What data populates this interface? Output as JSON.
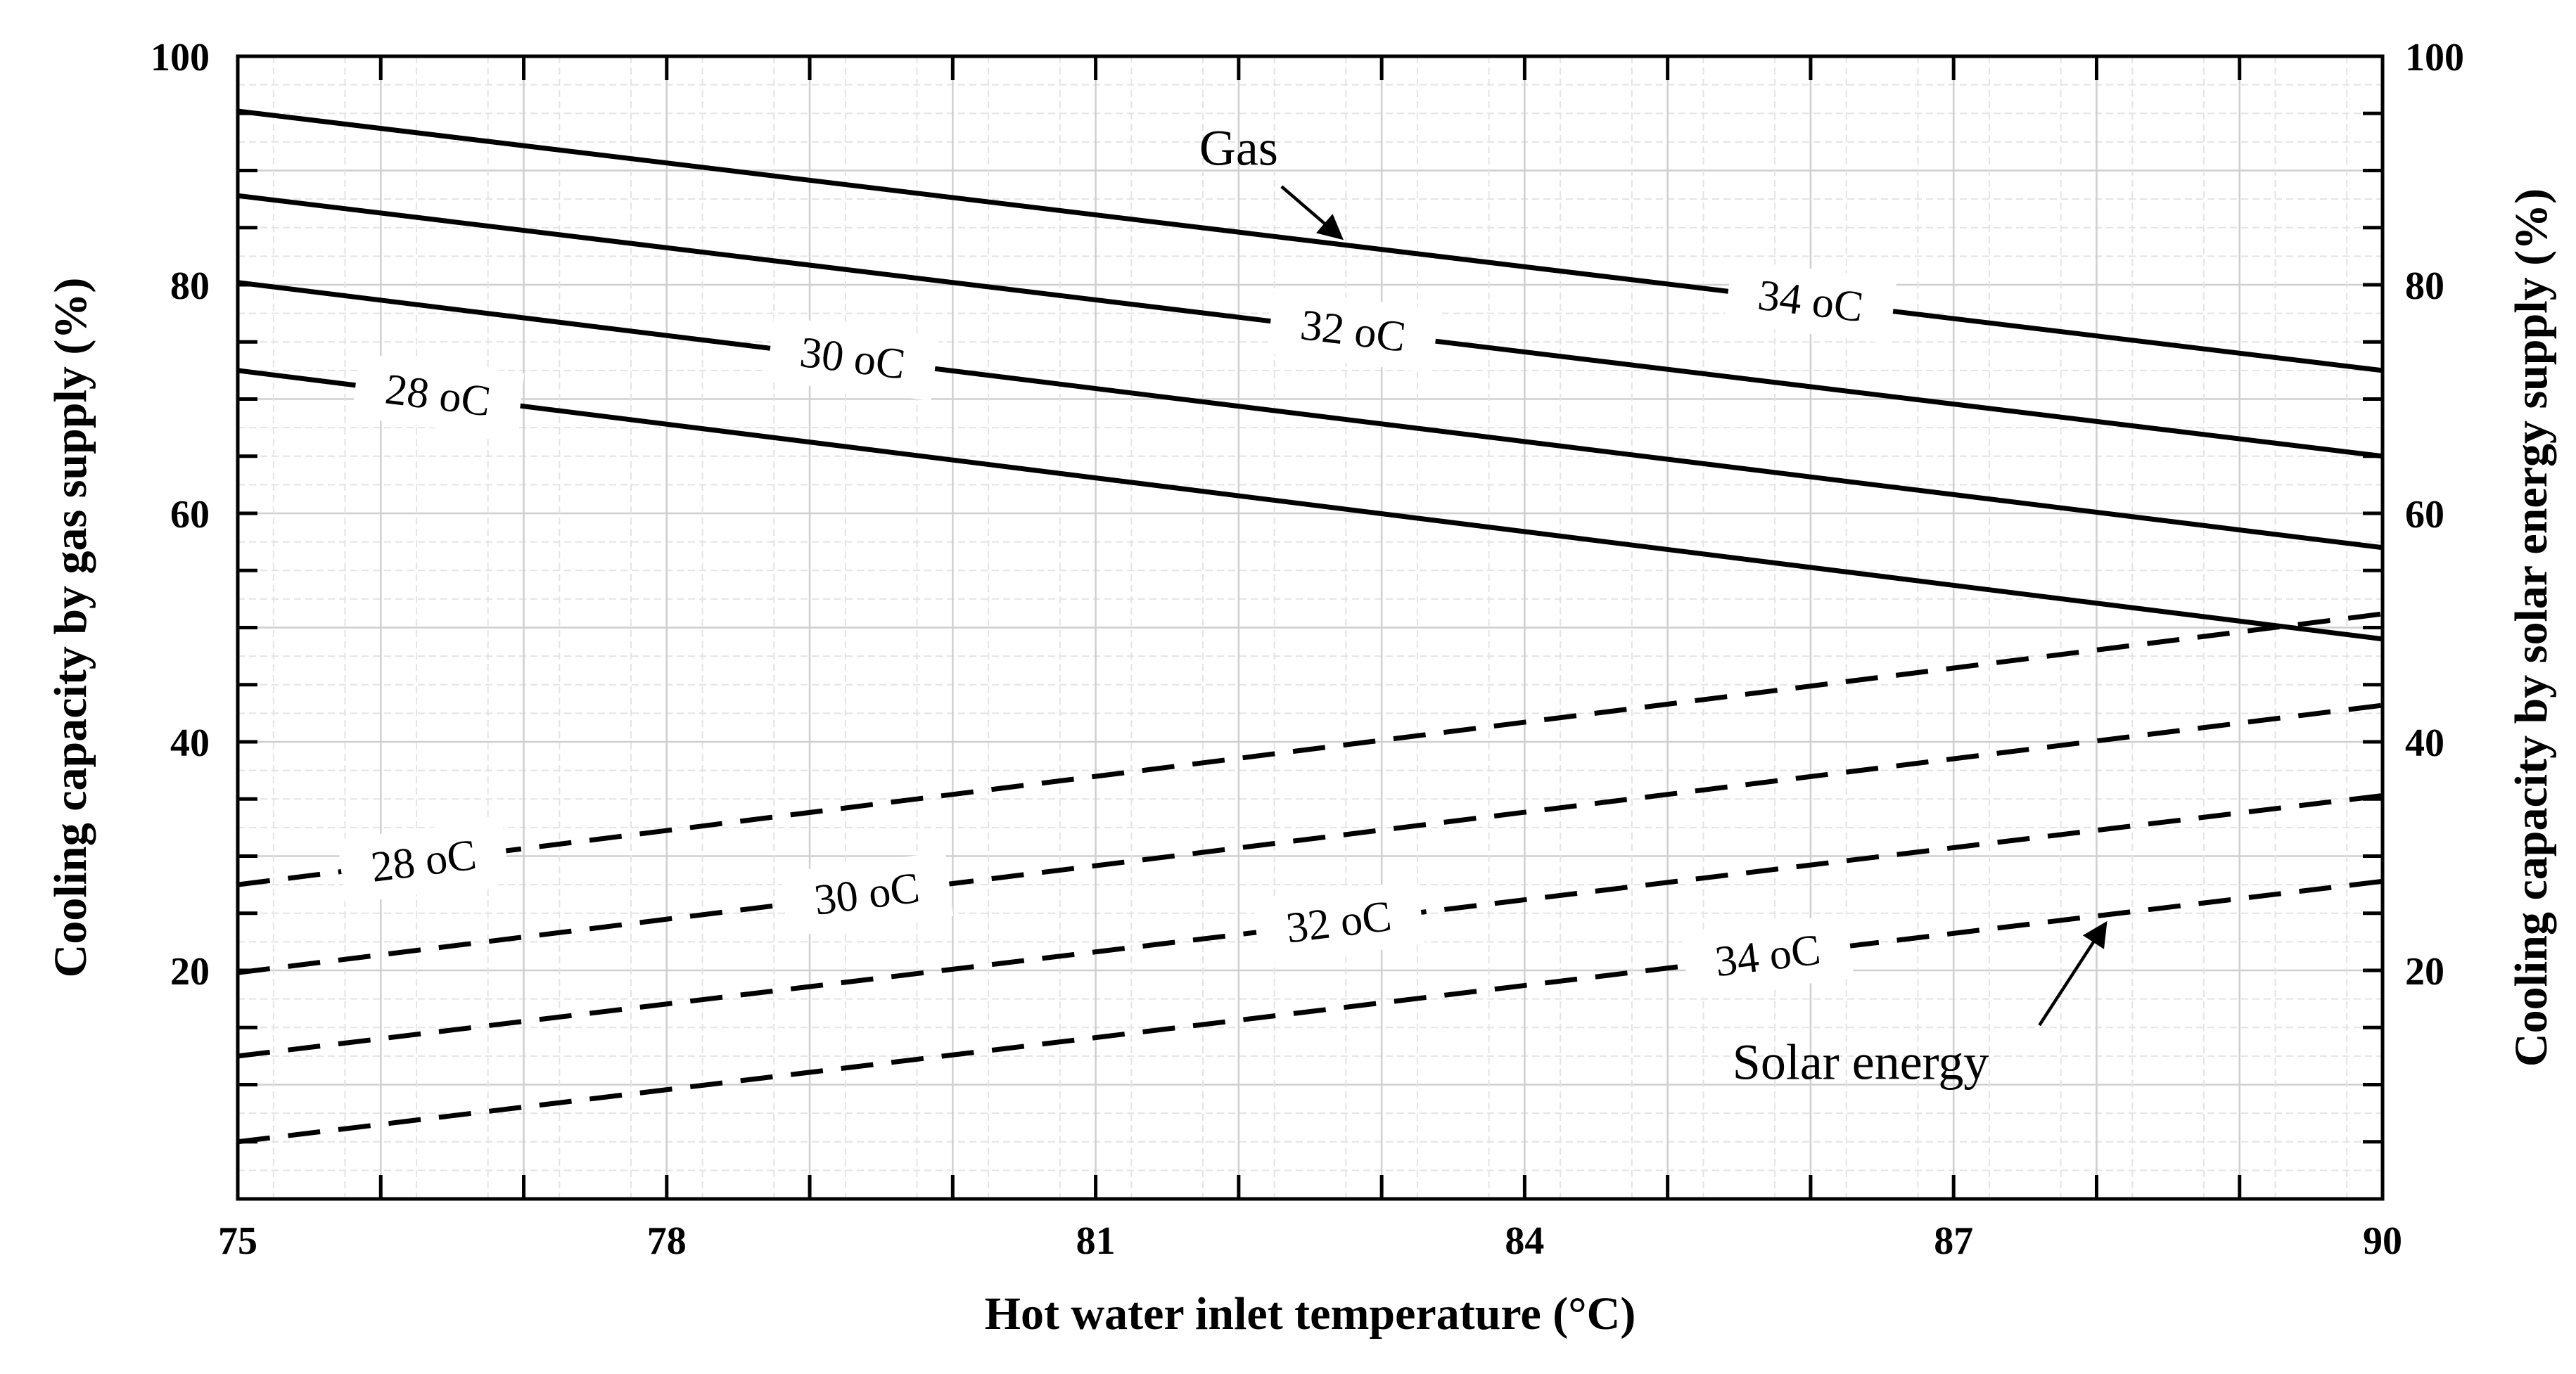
{
  "chart_data": {
    "type": "line",
    "title": "",
    "xlabel": "Hot water inlet temperature (°C)",
    "ylabel_left": "Cooling capacity by gas supply (%)",
    "ylabel_right": "Cooling capacity by solar energy supply (%)",
    "xlim": [
      75,
      90
    ],
    "ylim": [
      0,
      100
    ],
    "x_ticks": [
      "75",
      "78",
      "81",
      "84",
      "87",
      "90"
    ],
    "y_ticks": [
      "20",
      "40",
      "60",
      "80",
      "100"
    ],
    "grid": true,
    "series": [
      {
        "name": "Gas 28 oC",
        "group": "Gas",
        "style": "solid",
        "label": "28 oC",
        "x": [
          75,
          90
        ],
        "y": [
          72.5,
          49
        ]
      },
      {
        "name": "Gas 30 oC",
        "group": "Gas",
        "style": "solid",
        "label": "30 oC",
        "x": [
          75,
          90
        ],
        "y": [
          80.2,
          57
        ]
      },
      {
        "name": "Gas 32 oC",
        "group": "Gas",
        "style": "solid",
        "label": "32 oC",
        "x": [
          75,
          90
        ],
        "y": [
          87.8,
          65
        ]
      },
      {
        "name": "Gas 34 oC",
        "group": "Gas",
        "style": "solid",
        "label": "34 oC",
        "x": [
          75,
          90
        ],
        "y": [
          95.2,
          72.5
        ]
      },
      {
        "name": "Solar 28 oC",
        "group": "Solar energy",
        "style": "dashed",
        "label": "28 oC",
        "x": [
          75,
          90
        ],
        "y": [
          27.5,
          51.2
        ]
      },
      {
        "name": "Solar 30 oC",
        "group": "Solar energy",
        "style": "dashed",
        "label": "30 oC",
        "x": [
          75,
          90
        ],
        "y": [
          19.8,
          43.2
        ]
      },
      {
        "name": "Solar 32 oC",
        "group": "Solar energy",
        "style": "dashed",
        "label": "32 oC",
        "x": [
          75,
          90
        ],
        "y": [
          12.5,
          35.3
        ]
      },
      {
        "name": "Solar 34 oC",
        "group": "Solar energy",
        "style": "dashed",
        "label": "34 oC",
        "x": [
          75,
          90
        ],
        "y": [
          5,
          27.8
        ]
      }
    ],
    "annotations": [
      {
        "text": "Gas",
        "points_to": "Gas 34 oC"
      },
      {
        "text": "Solar energy",
        "points_to": "Solar 34 oC"
      }
    ]
  }
}
